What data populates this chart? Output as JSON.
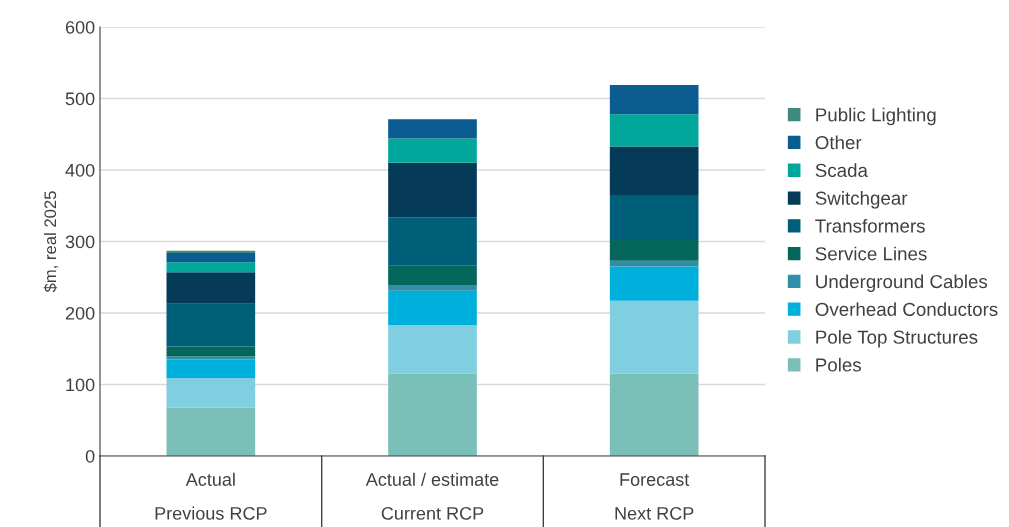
{
  "chart_data": {
    "type": "bar",
    "stacked": true,
    "ylabel": "$m, real 2025",
    "categories": [
      "Actual\nPrevious RCP",
      "Actual / estimate\nCurrent RCP",
      "Forecast\nNext RCP"
    ],
    "ylim": [
      0,
      600
    ],
    "yticks": [
      0,
      100,
      200,
      300,
      400,
      500,
      600
    ],
    "grid": "y",
    "legend": "right",
    "series": [
      {
        "name": "Poles",
        "color": "#7abfb8",
        "values": [
          68,
          115,
          115
        ]
      },
      {
        "name": "Pole Top Structures",
        "color": "#7fcfe0",
        "values": [
          41,
          68,
          102
        ]
      },
      {
        "name": "Overhead Conductors",
        "color": "#00b0dc",
        "values": [
          26,
          48,
          48
        ]
      },
      {
        "name": "Underground Cables",
        "color": "#2e8fa8",
        "values": [
          4,
          8,
          8
        ]
      },
      {
        "name": "Service Lines",
        "color": "#05665c",
        "values": [
          14,
          27,
          29
        ]
      },
      {
        "name": "Transformers",
        "color": "#005f78",
        "values": [
          60,
          68,
          63
        ]
      },
      {
        "name": "Switchgear",
        "color": "#053a58",
        "values": [
          44,
          76,
          68
        ]
      },
      {
        "name": "Scada",
        "color": "#00a79a",
        "values": [
          14,
          34,
          45
        ]
      },
      {
        "name": "Other",
        "color": "#0b5d91",
        "values": [
          13,
          27,
          41
        ]
      },
      {
        "name": "Public Lighting",
        "color": "#3e8a7e",
        "values": [
          3,
          0,
          0
        ]
      }
    ]
  }
}
